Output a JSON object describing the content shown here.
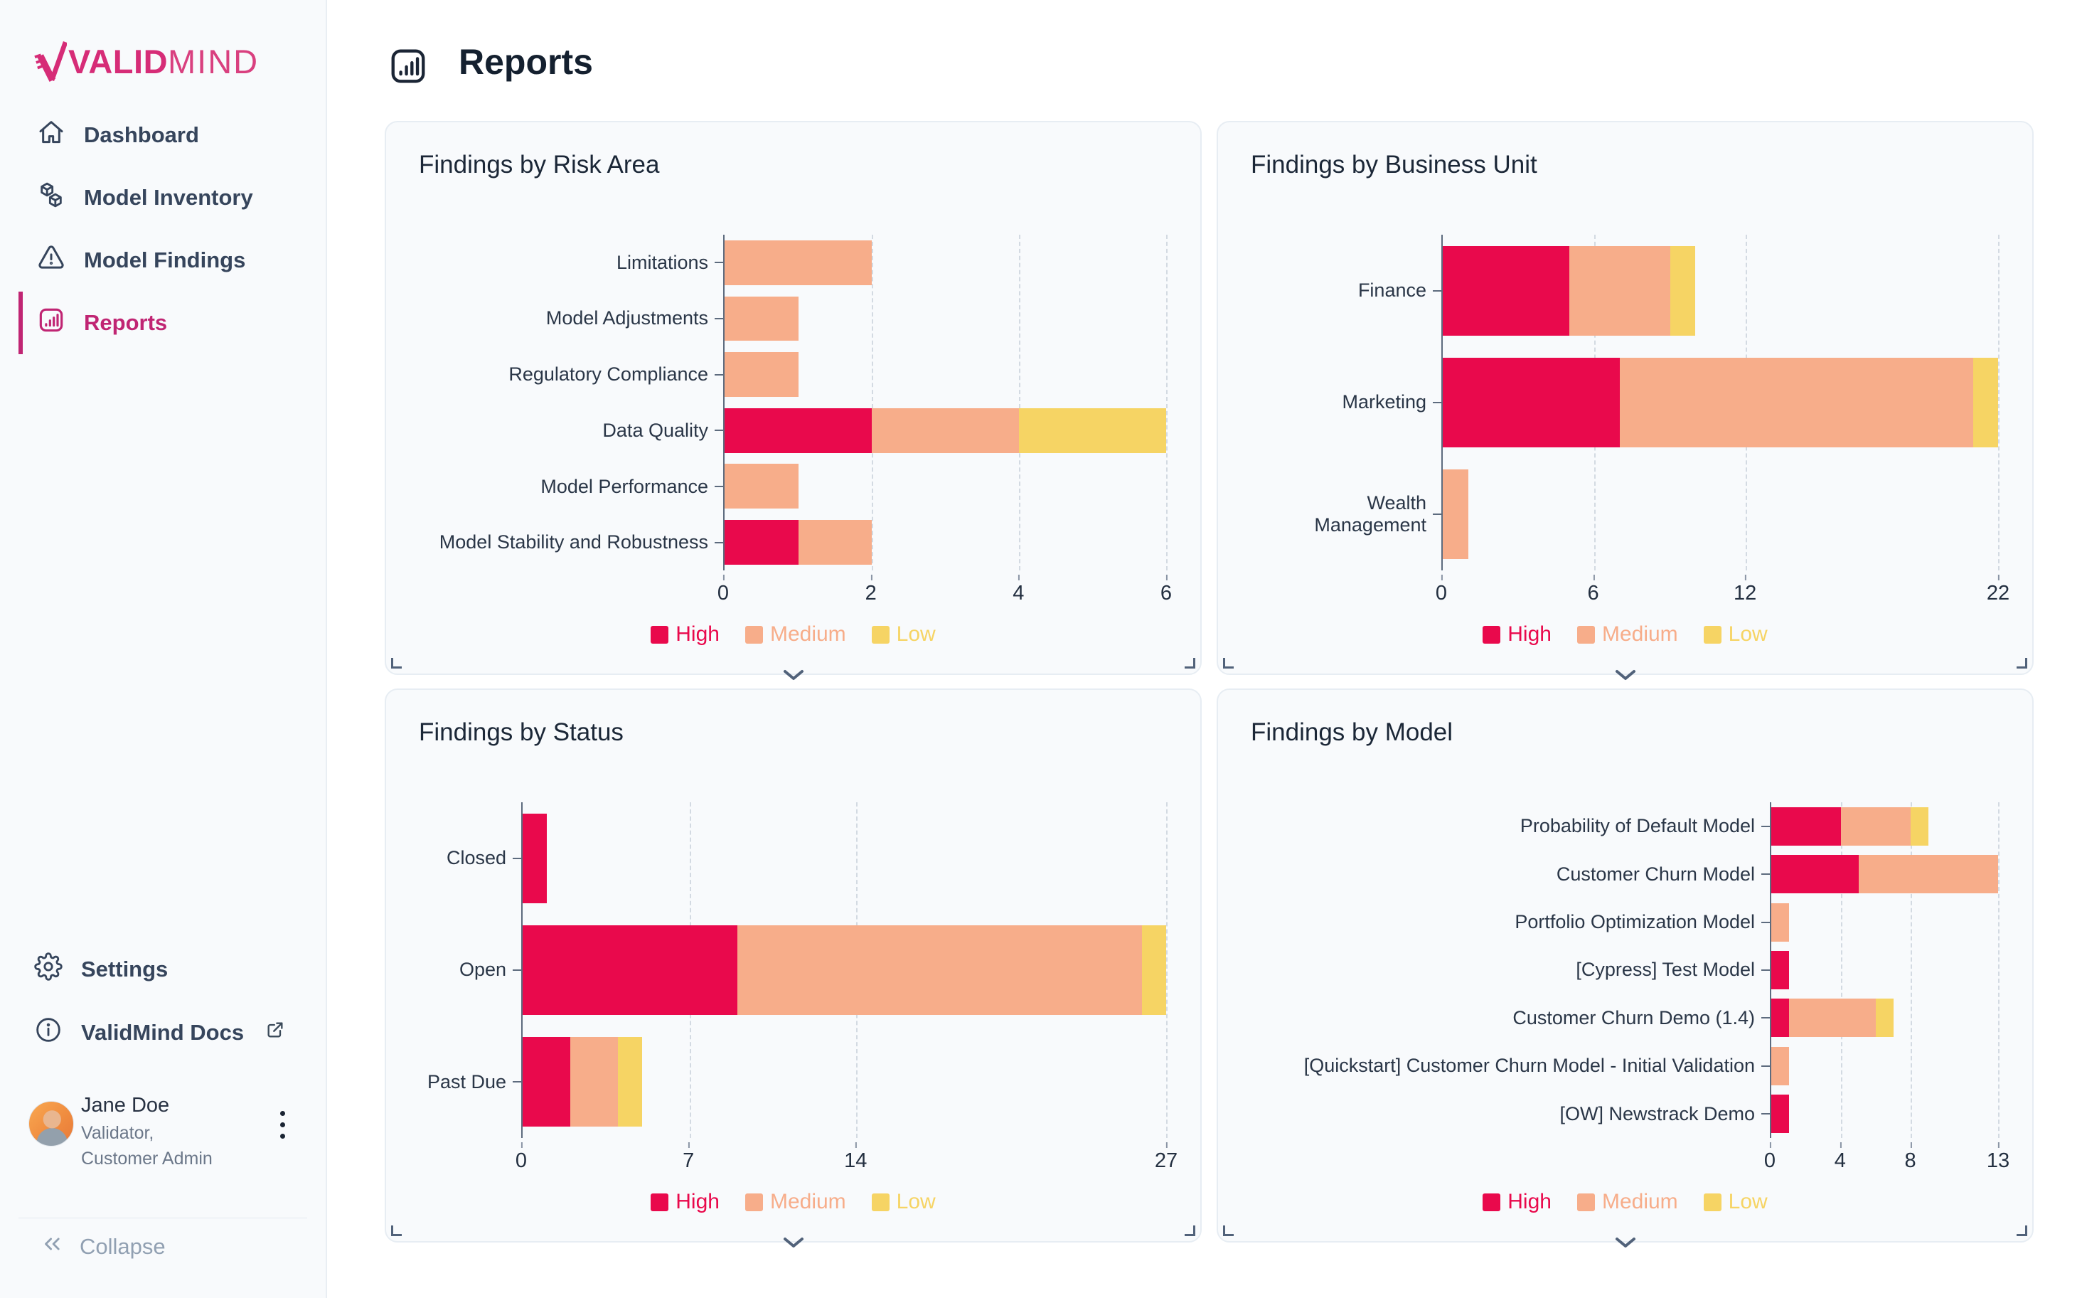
{
  "sidebar": {
    "logo": {
      "bold": "VALID",
      "light": "MIND",
      "color": "#D62C77"
    },
    "nav": [
      {
        "label": "Dashboard",
        "icon": "home-icon",
        "active": false
      },
      {
        "label": "Model Inventory",
        "icon": "cubes-icon",
        "active": false
      },
      {
        "label": "Model Findings",
        "icon": "warning-triangle-icon",
        "active": false
      },
      {
        "label": "Reports",
        "icon": "bar-chart-icon",
        "active": true
      }
    ],
    "footer": {
      "settings_label": "Settings",
      "docs_label": "ValidMind Docs",
      "collapse_label": "Collapse",
      "user": {
        "name": "Jane Doe",
        "role": "Validator, Customer Admin"
      }
    }
  },
  "header": {
    "title": "Reports"
  },
  "severity_colors": {
    "High": "#E9094C",
    "Medium": "#F7AD8A",
    "Low": "#F6D464"
  },
  "chart_data": [
    {
      "type": "bar",
      "orientation": "horizontal",
      "stacked": true,
      "title": "Findings by Risk Area",
      "categories": [
        "Limitations",
        "Model Adjustments",
        "Regulatory Compliance",
        "Data Quality",
        "Model Performance",
        "Model Stability and Robustness"
      ],
      "series": [
        {
          "name": "High",
          "color": "#E9094C",
          "values": [
            0,
            0,
            0,
            2,
            0,
            1
          ]
        },
        {
          "name": "Medium",
          "color": "#F7AD8A",
          "values": [
            2,
            1,
            1,
            2,
            1,
            1
          ]
        },
        {
          "name": "Low",
          "color": "#F6D464",
          "values": [
            0,
            0,
            0,
            2,
            0,
            0
          ]
        }
      ],
      "xticks": [
        0,
        2,
        4,
        6
      ],
      "xmax": 6,
      "legend_position": "bottom",
      "grid": "dashed-vertical"
    },
    {
      "type": "bar",
      "orientation": "horizontal",
      "stacked": true,
      "title": "Findings by Business Unit",
      "categories": [
        "Finance",
        "Marketing",
        "Wealth Management"
      ],
      "series": [
        {
          "name": "High",
          "color": "#E9094C",
          "values": [
            5,
            7,
            0
          ]
        },
        {
          "name": "Medium",
          "color": "#F7AD8A",
          "values": [
            4,
            14,
            1
          ]
        },
        {
          "name": "Low",
          "color": "#F6D464",
          "values": [
            1,
            1,
            0
          ]
        }
      ],
      "xticks": [
        0,
        6,
        12,
        22
      ],
      "xmax": 22,
      "legend_position": "bottom",
      "grid": "dashed-vertical"
    },
    {
      "type": "bar",
      "orientation": "horizontal",
      "stacked": true,
      "title": "Findings by Status",
      "categories": [
        "Closed",
        "Open",
        "Past Due"
      ],
      "series": [
        {
          "name": "High",
          "color": "#E9094C",
          "values": [
            1,
            9,
            2
          ]
        },
        {
          "name": "Medium",
          "color": "#F7AD8A",
          "values": [
            0,
            17,
            2
          ]
        },
        {
          "name": "Low",
          "color": "#F6D464",
          "values": [
            0,
            1,
            1
          ]
        }
      ],
      "xticks": [
        0,
        7,
        14,
        27
      ],
      "xmax": 27,
      "legend_position": "bottom",
      "grid": "dashed-vertical"
    },
    {
      "type": "bar",
      "orientation": "horizontal",
      "stacked": true,
      "title": "Findings by Model",
      "categories": [
        "Probability of Default Model",
        "Customer Churn Model",
        "Portfolio Optimization Model",
        "[Cypress] Test Model",
        "Customer Churn Demo (1.4)",
        "[Quickstart] Customer Churn Model - Initial Validation",
        "[OW] Newstrack Demo"
      ],
      "series": [
        {
          "name": "High",
          "color": "#E9094C",
          "values": [
            4,
            5,
            0,
            1,
            1,
            0,
            1
          ]
        },
        {
          "name": "Medium",
          "color": "#F7AD8A",
          "values": [
            4,
            8,
            1,
            0,
            5,
            1,
            0
          ]
        },
        {
          "name": "Low",
          "color": "#F6D464",
          "values": [
            1,
            0,
            0,
            0,
            1,
            0,
            0
          ]
        }
      ],
      "xticks": [
        0,
        4,
        8,
        13
      ],
      "xmax": 13,
      "legend_position": "bottom",
      "grid": "dashed-vertical"
    }
  ]
}
